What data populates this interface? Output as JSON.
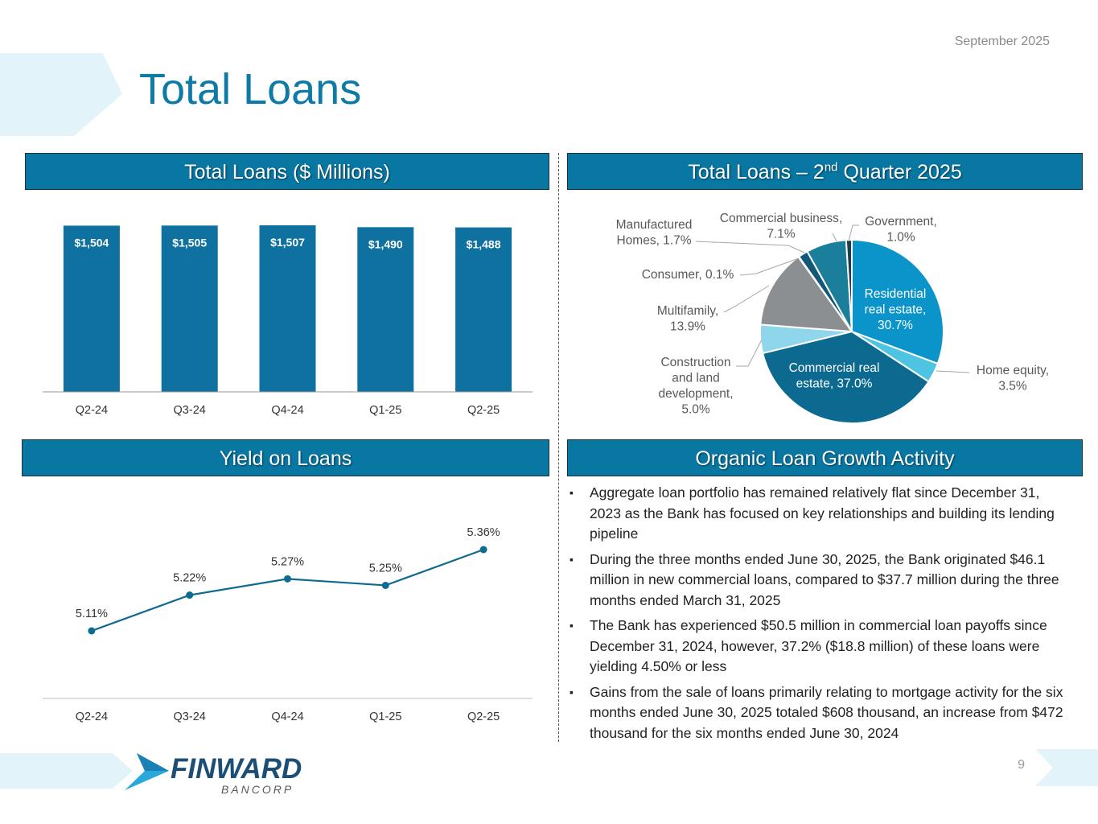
{
  "header": {
    "date": "September 2025",
    "title": "Total Loans"
  },
  "panels": {
    "loans_bar": {
      "title": "Total Loans ($ Millions)"
    },
    "loans_pie": {
      "title_prefix": "Total Loans – 2",
      "title_sup": "nd",
      "title_suffix": " Quarter 2025"
    },
    "yield": {
      "title": "Yield on Loans"
    },
    "organic": {
      "title": "Organic Loan Growth Activity"
    }
  },
  "chart_data": [
    {
      "type": "bar",
      "categories": [
        "Q2-24",
        "Q3-24",
        "Q4-24",
        "Q1-25",
        "Q2-25"
      ],
      "values": [
        1504,
        1505,
        1507,
        1490,
        1488
      ],
      "data_labels": [
        "$1,504",
        "$1,505",
        "$1,507",
        "$1,490",
        "$1,488"
      ],
      "title": "Total Loans ($ Millions)",
      "color": "#0e71a0"
    },
    {
      "type": "pie",
      "title": "Total Loans – 2nd Quarter 2025",
      "slices": [
        {
          "name": "Residential real estate",
          "value": 30.7,
          "label": [
            "Residential",
            "real estate,",
            "30.7%"
          ],
          "color": "#0b94c9"
        },
        {
          "name": "Home equity",
          "value": 3.5,
          "label": [
            "Home equity,",
            "3.5%"
          ],
          "color": "#4fc3e2"
        },
        {
          "name": "Commercial real estate",
          "value": 37.0,
          "label": [
            "Commercial real",
            "estate, 37.0%"
          ],
          "color": "#0c6a90"
        },
        {
          "name": "Construction and land development",
          "value": 5.0,
          "label": [
            "Construction",
            "and land",
            "development,",
            "5.0%"
          ],
          "color": "#8fd6ec"
        },
        {
          "name": "Multifamily",
          "value": 13.9,
          "label": [
            "Multifamily,",
            "13.9%"
          ],
          "color": "#8c8f91"
        },
        {
          "name": "Consumer",
          "value": 0.1,
          "label": [
            "Consumer, 0.1%"
          ],
          "color": "#5d6062"
        },
        {
          "name": "Manufactured Homes",
          "value": 1.7,
          "label": [
            "Manufactured",
            "Homes, 1.7%"
          ],
          "color": "#135878"
        },
        {
          "name": "Commercial business",
          "value": 7.1,
          "label": [
            "Commercial business,",
            "7.1%"
          ],
          "color": "#1b7f9c"
        },
        {
          "name": "Government",
          "value": 1.0,
          "label": [
            "Government,",
            "1.0%"
          ],
          "color": "#1a3e50"
        }
      ]
    },
    {
      "type": "line",
      "categories": [
        "Q2-24",
        "Q3-24",
        "Q4-24",
        "Q1-25",
        "Q2-25"
      ],
      "values": [
        5.11,
        5.22,
        5.27,
        5.25,
        5.36
      ],
      "data_labels": [
        "5.11%",
        "5.22%",
        "5.27%",
        "5.25%",
        "5.36%"
      ],
      "title": "Yield on Loans",
      "color": "#0e6a90"
    }
  ],
  "organic_bullets": [
    "Aggregate loan portfolio has remained relatively flat since December 31, 2023 as the Bank has focused on key relationships and building its lending pipeline",
    "During the three months ended June 30, 2025, the Bank originated $46.1 million in new commercial loans, compared to $37.7 million during the three months ended March 31, 2025",
    "The Bank has experienced $50.5 million in commercial loan payoffs since December 31, 2024, however, 37.2% ($18.8 million) of these loans were yielding 4.50% or less",
    "Gains from the sale of loans primarily relating to mortgage activity for the six months ended June 30, 2025 totaled $608 thousand, an increase from $472 thousand for the six months ended June 30, 2024"
  ],
  "footer": {
    "logo_name": "FINWARD",
    "logo_sub": "BANCORP",
    "page_number": "9"
  }
}
